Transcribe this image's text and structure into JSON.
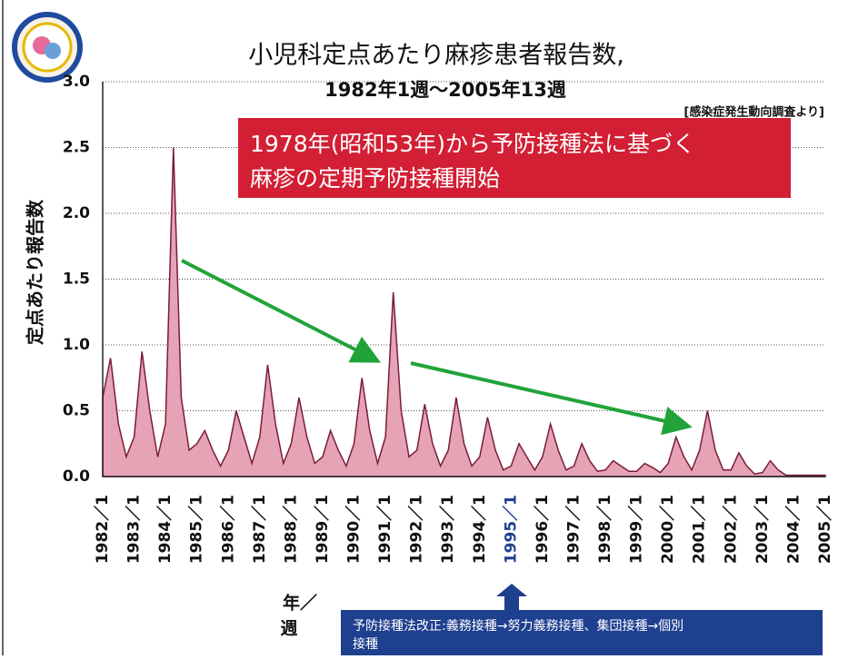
{
  "chart_data": {
    "type": "area",
    "title": "小児科定点あたり麻疹患者報告数,",
    "subtitle": "1982年1週～2005年13週",
    "source": "[感染症発生動向調査より]",
    "ylabel": "定点あたり報告数",
    "xlabel": [
      "年／",
      "週"
    ],
    "annotations": [
      "1978年(昭和53年)から予防接種法に基づく",
      "麻疹の定期予防接種開始"
    ],
    "note": [
      "予防接種法改正:義務接種→努力義務接種、集団接種→個別",
      "接種"
    ],
    "highlight_index": 52,
    "color": "#e6a3b6",
    "line_color": "#7a1c3a",
    "grid": true,
    "ylim": [
      0,
      3
    ],
    "yticks": [
      {
        "value": 0,
        "label": "0.0"
      },
      {
        "value": 0.5,
        "label": "0.5"
      },
      {
        "value": 1,
        "label": "1.0"
      },
      {
        "value": 1.5,
        "label": "1.5"
      },
      {
        "value": 2,
        "label": "2.0"
      },
      {
        "value": 2.5,
        "label": "2.5"
      },
      {
        "value": 3,
        "label": "3.0"
      }
    ],
    "categories": [
      "1982／1",
      null,
      null,
      null,
      "1983／1",
      null,
      null,
      null,
      "1984／1",
      null,
      null,
      null,
      "1985／1",
      null,
      null,
      null,
      "1986／1",
      null,
      null,
      null,
      "1987／1",
      null,
      null,
      null,
      "1988／1",
      null,
      null,
      null,
      "1989／1",
      null,
      null,
      null,
      "1990／1",
      null,
      null,
      null,
      "1991／1",
      null,
      null,
      null,
      "1992／1",
      null,
      null,
      null,
      "1993／1",
      null,
      null,
      null,
      "1994／1",
      null,
      null,
      null,
      "1995／1",
      null,
      null,
      null,
      "1996／1",
      null,
      null,
      null,
      "1997／1",
      null,
      null,
      null,
      "1998／1",
      null,
      null,
      null,
      "1999／1",
      null,
      null,
      null,
      "2000／1",
      null,
      null,
      null,
      "2001／1",
      null,
      null,
      null,
      "2002／1",
      null,
      null,
      null,
      "2003／1",
      null,
      null,
      null,
      "2004／1",
      null,
      null,
      null,
      "2005／1"
    ],
    "values": [
      0.6,
      0.9,
      0.4,
      0.15,
      0.3,
      0.95,
      0.5,
      0.15,
      0.4,
      2.5,
      0.6,
      0.2,
      0.25,
      0.35,
      0.2,
      0.08,
      0.2,
      0.5,
      0.3,
      0.1,
      0.3,
      0.85,
      0.4,
      0.1,
      0.25,
      0.6,
      0.3,
      0.1,
      0.15,
      0.35,
      0.2,
      0.08,
      0.25,
      0.75,
      0.35,
      0.1,
      0.3,
      1.4,
      0.5,
      0.15,
      0.2,
      0.55,
      0.25,
      0.08,
      0.2,
      0.6,
      0.25,
      0.08,
      0.15,
      0.45,
      0.2,
      0.05,
      0.08,
      0.25,
      0.15,
      0.05,
      0.15,
      0.4,
      0.2,
      0.05,
      0.08,
      0.25,
      0.12,
      0.04,
      0.05,
      0.12,
      0.08,
      0.04,
      0.04,
      0.1,
      0.07,
      0.03,
      0.1,
      0.3,
      0.15,
      0.05,
      0.2,
      0.5,
      0.2,
      0.05,
      0.05,
      0.18,
      0.08,
      0.02,
      0.03,
      0.12,
      0.05,
      0.01,
      0.01,
      0.01,
      0.01,
      0.01,
      0.01
    ]
  }
}
